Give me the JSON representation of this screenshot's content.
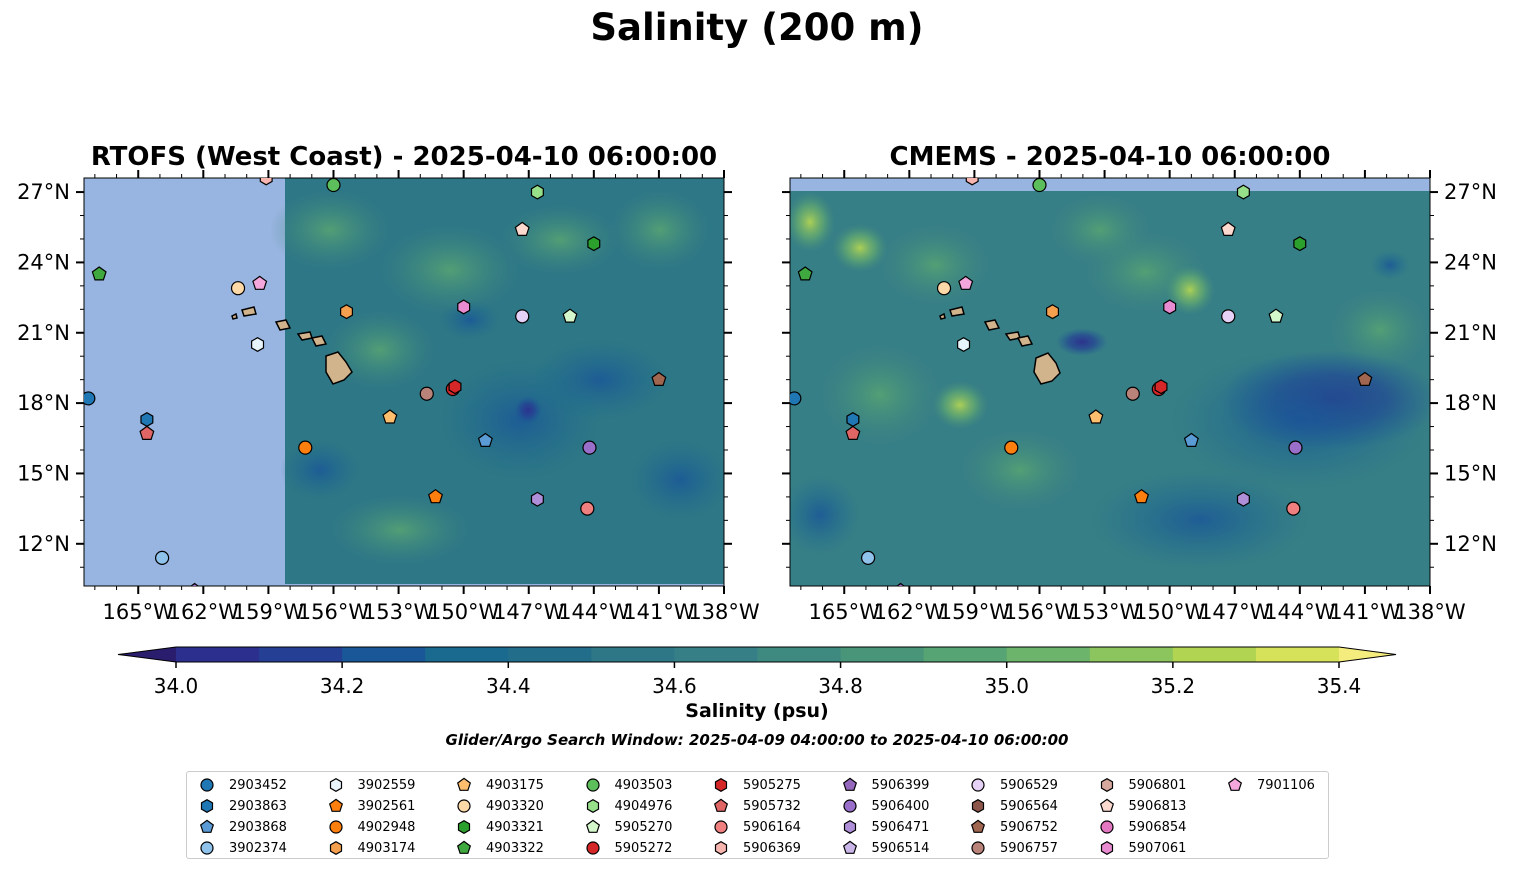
{
  "title": "Salinity (200 m)",
  "panels": [
    {
      "title": "RTOFS (West Coast) - 2025-04-10 06:00:00"
    },
    {
      "title": "CMEMS - 2025-04-10 06:00:00"
    }
  ],
  "axes": {
    "x_ticks": [
      "165°W",
      "162°W",
      "159°W",
      "156°W",
      "153°W",
      "150°W",
      "147°W",
      "144°W",
      "141°W",
      "138°W"
    ],
    "x_tick_values": [
      -165,
      -162,
      -159,
      -156,
      -153,
      -150,
      -147,
      -144,
      -141,
      -138
    ],
    "y_ticks": [
      "27°N",
      "24°N",
      "21°N",
      "18°N",
      "15°N",
      "12°N"
    ],
    "y_tick_values": [
      27,
      24,
      21,
      18,
      15,
      12
    ],
    "lon_range": [
      -167.5,
      -138
    ],
    "lat_range": [
      10.2,
      27.6
    ]
  },
  "colorbar": {
    "label": "Salinity (psu)",
    "tick_labels": [
      "34.0",
      "34.2",
      "34.4",
      "34.6",
      "34.8",
      "35.0",
      "35.2",
      "35.4"
    ],
    "range": [
      34.0,
      35.4
    ],
    "extend": "both",
    "colors": [
      "#2a1d6e",
      "#2c2f8e",
      "#253f94",
      "#1a5798",
      "#1a6a8f",
      "#226d8a",
      "#2e7786",
      "#377f86",
      "#3f8a80",
      "#48957a",
      "#56a373",
      "#6cb36b",
      "#8cc45d",
      "#b2d453",
      "#d6e25a",
      "#f5ec7e"
    ]
  },
  "colors": {
    "land": "#d2b48c",
    "ocean_nodata": "#98b4e0"
  },
  "search_window": "Glider/Argo Search Window: 2025-04-09 04:00:00 to 2025-04-10 06:00:00",
  "floats": [
    {
      "id": "2903452",
      "marker": "circle",
      "color": "#1f77b4",
      "lon": -167.3,
      "lat": 18.2
    },
    {
      "id": "2903863",
      "marker": "hexagon",
      "color": "#1f77b4",
      "lon": -164.6,
      "lat": 17.3
    },
    {
      "id": "2903868",
      "marker": "pentagon",
      "color": "#5b9bd5",
      "lon": -149.0,
      "lat": 16.4
    },
    {
      "id": "3902374",
      "marker": "circle",
      "color": "#8fc3eb",
      "lon": -163.9,
      "lat": 11.4
    },
    {
      "id": "3902559",
      "marker": "hexagon",
      "color": "#e8f4fc",
      "lon": -159.5,
      "lat": 20.5
    },
    {
      "id": "3902561",
      "marker": "pentagon",
      "color": "#ff7f0e",
      "lon": -151.3,
      "lat": 14.0
    },
    {
      "id": "4902948",
      "marker": "circle",
      "color": "#ff7f0e",
      "lon": -157.3,
      "lat": 16.1
    },
    {
      "id": "4903174",
      "marker": "hexagon",
      "color": "#f5a04e",
      "lon": -155.4,
      "lat": 21.9
    },
    {
      "id": "4903175",
      "marker": "pentagon",
      "color": "#fdbe6e",
      "lon": -153.4,
      "lat": 17.4
    },
    {
      "id": "4903320",
      "marker": "circle",
      "color": "#fdd9a8",
      "lon": -160.4,
      "lat": 22.9
    },
    {
      "id": "4903321",
      "marker": "hexagon",
      "color": "#2ca02c",
      "lon": -144.0,
      "lat": 24.8
    },
    {
      "id": "4903322",
      "marker": "pentagon",
      "color": "#3fa93f",
      "lon": -166.8,
      "lat": 23.5
    },
    {
      "id": "4903503",
      "marker": "circle",
      "color": "#5cbf5c",
      "lon": -156.0,
      "lat": 27.3
    },
    {
      "id": "4904976",
      "marker": "hexagon",
      "color": "#98df8a",
      "lon": -146.6,
      "lat": 27.0
    },
    {
      "id": "5905270",
      "marker": "pentagon",
      "color": "#d4f7cc",
      "lon": -145.1,
      "lat": 21.7
    },
    {
      "id": "5905272",
      "marker": "circle",
      "color": "#d62728",
      "lon": -150.5,
      "lat": 18.6
    },
    {
      "id": "5905275",
      "marker": "hexagon",
      "color": "#d62728",
      "lon": -150.4,
      "lat": 18.7
    },
    {
      "id": "5905732",
      "marker": "pentagon",
      "color": "#e06666",
      "lon": -164.6,
      "lat": 16.7
    },
    {
      "id": "5906164",
      "marker": "circle",
      "color": "#f08080",
      "lon": -144.3,
      "lat": 13.5
    },
    {
      "id": "5906369",
      "marker": "hexagon",
      "color": "#f7b5b0",
      "lon": -159.1,
      "lat": 27.6
    },
    {
      "id": "5906399",
      "marker": "pentagon",
      "color": "#9467bd",
      "lon": -162.4,
      "lat": 10.0
    },
    {
      "id": "5906400",
      "marker": "circle",
      "color": "#9a6fc9",
      "lon": -144.2,
      "lat": 16.1
    },
    {
      "id": "5906471",
      "marker": "hexagon",
      "color": "#b08fd9",
      "lon": -146.6,
      "lat": 13.9
    },
    {
      "id": "5906514",
      "marker": "pentagon",
      "color": "#cbb6ea",
      "lon": -162.0,
      "lat": 9.8
    },
    {
      "id": "5906529",
      "marker": "circle",
      "color": "#e7d2f7",
      "lon": -147.3,
      "lat": 21.7
    },
    {
      "id": "5906564",
      "marker": "hexagon",
      "color": "#8c564b",
      "lon": -162.0,
      "lat": 9.6
    },
    {
      "id": "5906752",
      "marker": "pentagon",
      "color": "#a0664f",
      "lon": -141.0,
      "lat": 19.0
    },
    {
      "id": "5906757",
      "marker": "circle",
      "color": "#b9837a",
      "lon": -151.7,
      "lat": 18.4
    },
    {
      "id": "5906801",
      "marker": "hexagon",
      "color": "#d7a89d",
      "lon": -162.0,
      "lat": 9.4
    },
    {
      "id": "5906813",
      "marker": "pentagon",
      "color": "#fbd9cf",
      "lon": -147.3,
      "lat": 25.4
    },
    {
      "id": "5906854",
      "marker": "circle",
      "color": "#e377c2",
      "lon": -162.0,
      "lat": 9.2
    },
    {
      "id": "5907061",
      "marker": "hexagon",
      "color": "#e98bd0",
      "lon": -150.0,
      "lat": 22.1
    },
    {
      "id": "7901106",
      "marker": "pentagon",
      "color": "#f3a7dd",
      "lon": -159.4,
      "lat": 23.1
    }
  ]
}
